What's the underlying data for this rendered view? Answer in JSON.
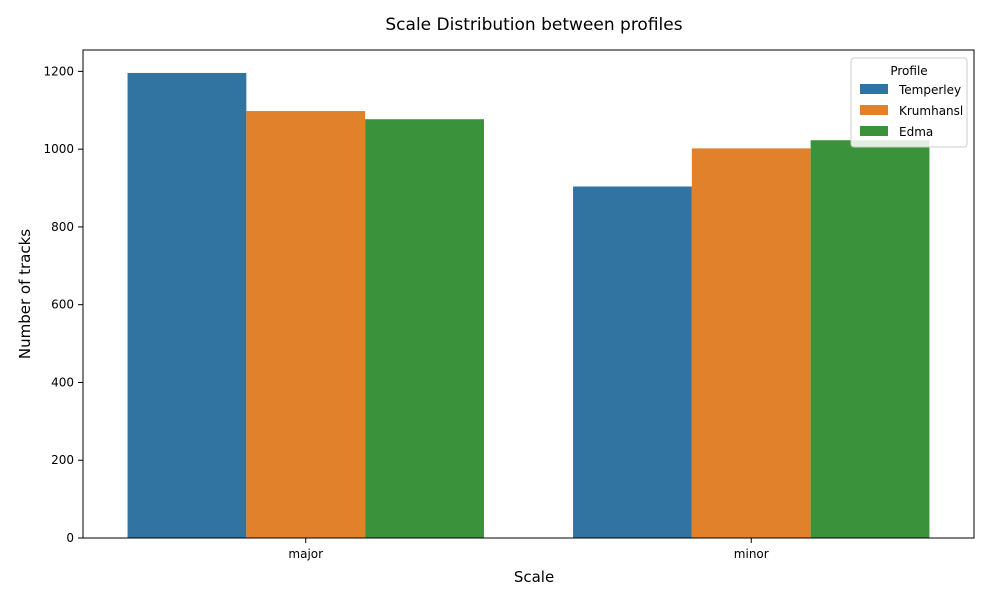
{
  "chart_data": {
    "type": "bar",
    "title": "Scale Distribution between profiles",
    "xlabel": "Scale",
    "ylabel": "Number of tracks",
    "categories": [
      "major",
      "minor"
    ],
    "series": [
      {
        "name": "Temperley",
        "color": "#3274a1",
        "values": [
          1196,
          904
        ]
      },
      {
        "name": "Krumhansl",
        "color": "#e1812c",
        "values": [
          1098,
          1002
        ]
      },
      {
        "name": "Edma",
        "color": "#3a923a",
        "values": [
          1077,
          1023
        ]
      }
    ],
    "ylim": [
      0,
      1255
    ],
    "yticks": [
      0,
      200,
      400,
      600,
      800,
      1000,
      1200
    ],
    "legend": {
      "title": "Profile",
      "placement": "top-right"
    },
    "grid": false
  }
}
